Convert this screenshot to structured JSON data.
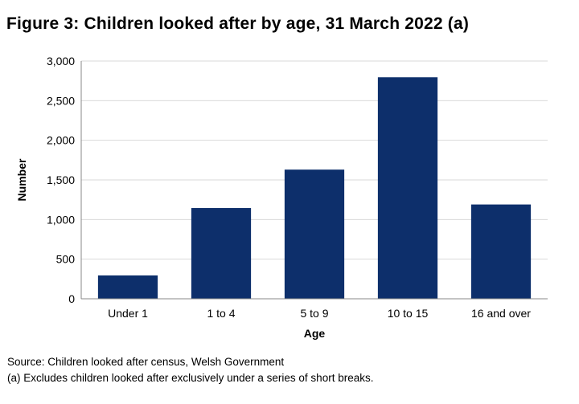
{
  "chart_data": {
    "type": "bar",
    "title": "Figure 3: Children looked after by age, 31 March 2022 (a)",
    "xlabel": "Age",
    "ylabel": "Number",
    "categories": [
      "Under 1",
      "1 to 4",
      "5 to 9",
      "10 to 15",
      "16 and over"
    ],
    "values": [
      295,
      1145,
      1630,
      2795,
      1190
    ],
    "ylim": [
      0,
      3000
    ],
    "yticks": [
      0,
      500,
      1000,
      1500,
      2000,
      2500,
      3000
    ],
    "ytick_labels": [
      "0",
      "500",
      "1,000",
      "1,500",
      "2,000",
      "2,500",
      "3,000"
    ],
    "grid": true,
    "bar_color": "#0d2f6b"
  },
  "footnotes": {
    "source": "Source: Children looked after census, Welsh Government",
    "note": "(a) Excludes children looked after exclusively under a series of short breaks."
  }
}
